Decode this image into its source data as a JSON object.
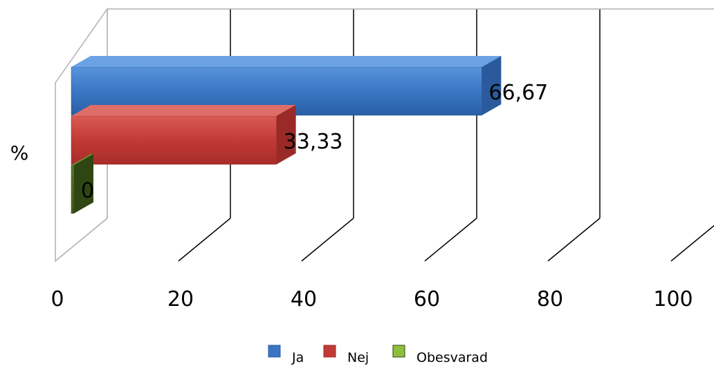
{
  "chart_data": {
    "type": "bar",
    "orientation": "horizontal",
    "style": "3d-clustered",
    "categories": [
      "%"
    ],
    "series": [
      {
        "name": "Ja",
        "values": [
          66.67
        ],
        "label": "66,67",
        "color": "#3a76c4"
      },
      {
        "name": "Nej",
        "values": [
          33.33
        ],
        "label": "33,33",
        "color": "#c23a36"
      },
      {
        "name": "Obesvarad",
        "values": [
          0
        ],
        "label": "0",
        "color": "#8fbe3c"
      }
    ],
    "xlim": [
      0,
      100
    ],
    "x_ticks": [
      "0",
      "20",
      "40",
      "60",
      "80",
      "100"
    ],
    "grid": true,
    "legend_position": "bottom",
    "title": "",
    "xlabel": "",
    "ylabel": ""
  }
}
